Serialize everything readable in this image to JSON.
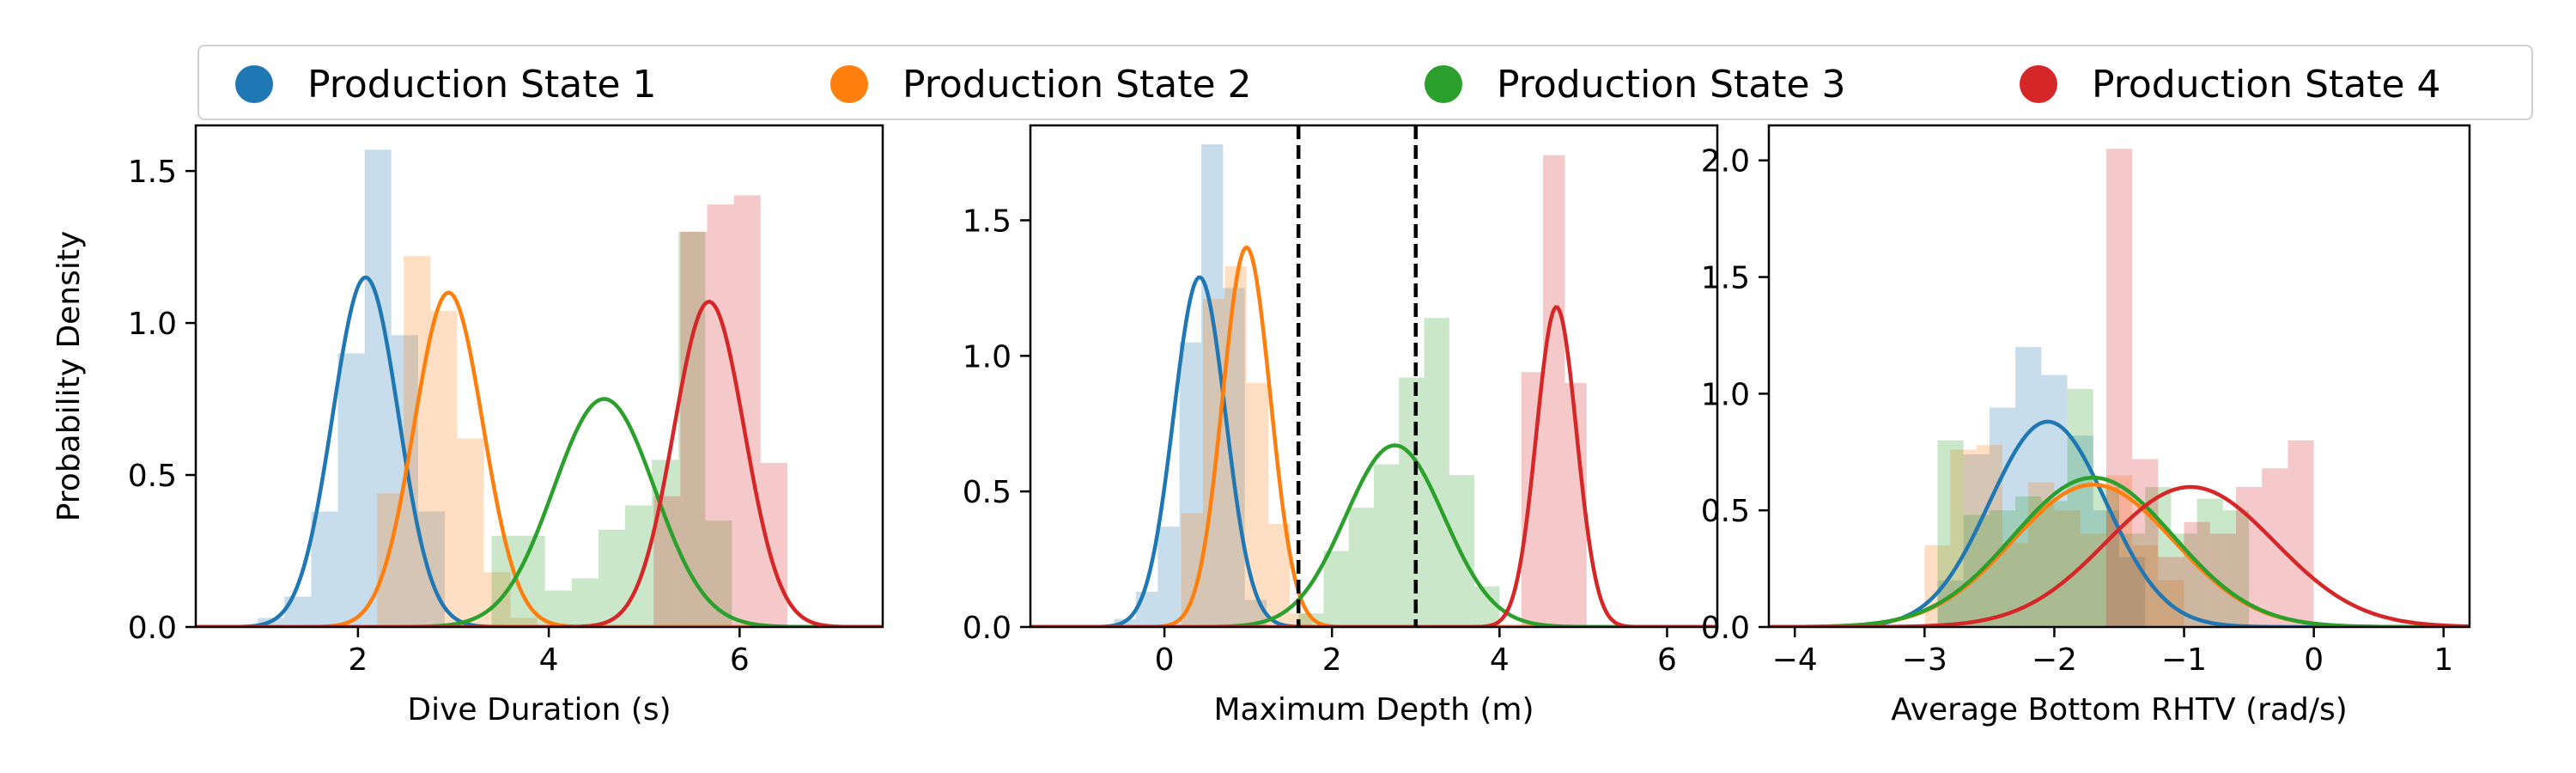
{
  "legend": {
    "items": [
      {
        "label": "Production State 1",
        "color": "#1f77b4"
      },
      {
        "label": "Production State 2",
        "color": "#ff7f0e"
      },
      {
        "label": "Production State 3",
        "color": "#2ca02c"
      },
      {
        "label": "Production State 4",
        "color": "#d62728"
      }
    ]
  },
  "chart_data": [
    {
      "type": "histogram+density",
      "xlabel": "Dive Duration (s)",
      "ylabel": "Probability Density",
      "xlim": [
        0.3,
        7.5
      ],
      "ylim": [
        0,
        1.65
      ],
      "xticks": [
        2,
        4,
        6
      ],
      "yticks": [
        0.0,
        0.5,
        1.0,
        1.5
      ],
      "ytick_labels": [
        "0.0",
        "0.5",
        "1.0",
        "1.5"
      ],
      "grid": false,
      "series": [
        {
          "color": "#1f77b4",
          "hist": {
            "bin_start": 0.95,
            "bin_width": 0.28,
            "values": [
              0.03,
              0.1,
              0.38,
              0.9,
              1.57,
              0.96,
              0.38
            ]
          },
          "density": {
            "type": "normal",
            "mean": 2.08,
            "sd": 0.345,
            "peak": 1.15
          }
        },
        {
          "color": "#ff7f0e",
          "hist": {
            "bin_start": 2.2,
            "bin_width": 0.28,
            "values": [
              0.44,
              1.22,
              1.04,
              0.62,
              0.18,
              0.03
            ]
          },
          "density": {
            "type": "normal",
            "mean": 2.95,
            "sd": 0.36,
            "peak": 1.1
          }
        },
        {
          "color": "#2ca02c",
          "hist": {
            "bin_start": 3.4,
            "bin_width": 0.28,
            "values": [
              0.3,
              0.3,
              0.12,
              0.16,
              0.32,
              0.4,
              0.55,
              1.3,
              0.35
            ]
          },
          "density": {
            "type": "normal",
            "mean": 4.58,
            "sd": 0.53,
            "peak": 0.75
          }
        },
        {
          "color": "#d62728",
          "hist": {
            "bin_start": 5.1,
            "bin_width": 0.28,
            "values": [
              0.43,
              1.3,
              1.39,
              1.42,
              0.54
            ]
          },
          "density": {
            "type": "normal",
            "mean": 5.68,
            "sd": 0.37,
            "peak": 1.07
          }
        }
      ]
    },
    {
      "type": "histogram+density",
      "xlabel": "Maximum Depth (m)",
      "ylabel": "",
      "xlim": [
        -1.6,
        6.6
      ],
      "ylim": [
        0,
        1.85
      ],
      "xticks": [
        0,
        2,
        4,
        6
      ],
      "yticks": [
        0.0,
        0.5,
        1.0,
        1.5
      ],
      "ytick_labels": [
        "0.0",
        "0.5",
        "1.0",
        "1.5"
      ],
      "grid": false,
      "vlines": [
        1.6,
        3.0
      ],
      "series": [
        {
          "color": "#1f77b4",
          "hist": {
            "bin_start": -0.6,
            "bin_width": 0.26,
            "values": [
              0.03,
              0.13,
              0.37,
              1.05,
              1.78,
              1.25,
              0.1
            ]
          },
          "density": {
            "type": "normal",
            "mean": 0.42,
            "sd": 0.31,
            "peak": 1.29
          }
        },
        {
          "color": "#ff7f0e",
          "hist": {
            "bin_start": 0.2,
            "bin_width": 0.26,
            "values": [
              0.42,
              1.21,
              1.33,
              0.9,
              0.38,
              0.05
            ]
          },
          "density": {
            "type": "normal",
            "mean": 0.98,
            "sd": 0.285,
            "peak": 1.4
          }
        },
        {
          "color": "#2ca02c",
          "hist": {
            "bin_start": 1.6,
            "bin_width": 0.3,
            "values": [
              0.05,
              0.28,
              0.44,
              0.6,
              0.92,
              1.14,
              0.56,
              0.15
            ]
          },
          "density": {
            "type": "normal",
            "mean": 2.75,
            "sd": 0.59,
            "peak": 0.67
          }
        },
        {
          "color": "#d62728",
          "hist": {
            "bin_start": 4.26,
            "bin_width": 0.26,
            "values": [
              0.94,
              1.74,
              0.9
            ]
          },
          "density": {
            "type": "normal",
            "mean": 4.68,
            "sd": 0.24,
            "peak": 1.18
          }
        }
      ]
    },
    {
      "type": "histogram+density",
      "xlabel": "Average Bottom RHTV (rad/s)",
      "ylabel": "",
      "xlim": [
        -4.2,
        1.2
      ],
      "ylim": [
        0,
        2.15
      ],
      "xticks": [
        -4,
        -3,
        -2,
        -1,
        0,
        1
      ],
      "yticks": [
        0.0,
        0.5,
        1.0,
        1.5,
        2.0
      ],
      "ytick_labels": [
        "0.0",
        "0.5",
        "1.0",
        "1.5",
        "2.0"
      ],
      "grid": false,
      "series": [
        {
          "color": "#1f77b4",
          "hist": {
            "bin_start": -2.9,
            "bin_width": 0.2,
            "values": [
              0.2,
              0.74,
              0.94,
              1.2,
              1.08,
              0.82,
              0.5,
              0.3
            ]
          },
          "density": {
            "type": "normal",
            "mean": -2.05,
            "sd": 0.45,
            "peak": 0.88
          }
        },
        {
          "color": "#ff7f0e",
          "hist": {
            "bin_start": -3.0,
            "bin_width": 0.2,
            "values": [
              0.35,
              0.76,
              0.78,
              0.36,
              0.62,
              0.5,
              0.4,
              0.65,
              0.35,
              0.2
            ]
          },
          "density": {
            "type": "normal",
            "mean": -1.7,
            "sd": 0.62,
            "peak": 0.61
          }
        },
        {
          "color": "#2ca02c",
          "hist": {
            "bin_start": -2.9,
            "bin_width": 0.2,
            "values": [
              0.8,
              0.48,
              0.5,
              0.56,
              0.54,
              1.02,
              0.6,
              0.4,
              0.6,
              0.4,
              0.55,
              0.5
            ]
          },
          "density": {
            "type": "normal",
            "mean": -1.7,
            "sd": 0.62,
            "peak": 0.64
          }
        },
        {
          "color": "#d62728",
          "hist": {
            "bin_start": -1.6,
            "bin_width": 0.2,
            "values": [
              2.05,
              0.72,
              0.3,
              0.45,
              0.4,
              0.6,
              0.68,
              0.8
            ]
          },
          "density": {
            "type": "normal",
            "mean": -0.95,
            "sd": 0.65,
            "peak": 0.6
          }
        }
      ]
    }
  ]
}
